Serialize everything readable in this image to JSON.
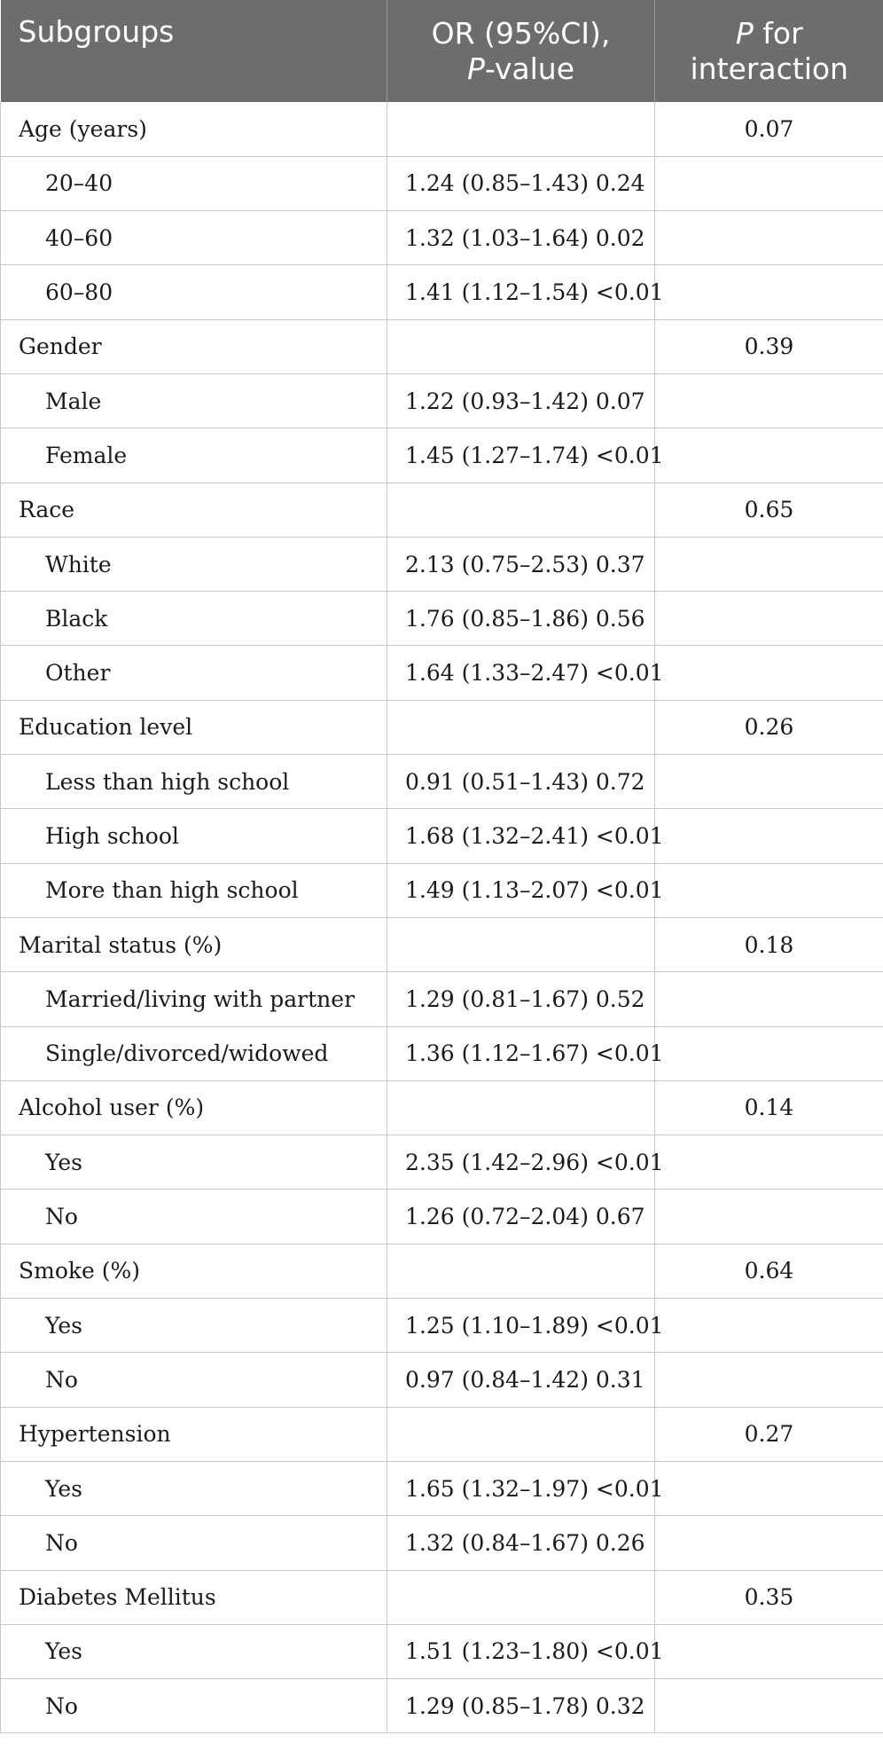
{
  "header": {
    "col1": "Subgroups",
    "col2_line1": "OR (95%CI),",
    "col2_italic": "P",
    "col2_rest": "-value",
    "col3_italic": "P",
    "col3_rest": " for",
    "col3_line2": "interaction"
  },
  "rows": [
    {
      "label": "Age (years)",
      "or": "",
      "p": "0.07",
      "sub": false
    },
    {
      "label": "20–40",
      "or": "1.24 (0.85–1.43) 0.24",
      "p": "",
      "sub": true
    },
    {
      "label": "40–60",
      "or": "1.32 (1.03–1.64) 0.02",
      "p": "",
      "sub": true
    },
    {
      "label": "60–80",
      "or": "1.41 (1.12–1.54) <0.01",
      "p": "",
      "sub": true
    },
    {
      "label": "Gender",
      "or": "",
      "p": "0.39",
      "sub": false
    },
    {
      "label": "Male",
      "or": "1.22 (0.93–1.42) 0.07",
      "p": "",
      "sub": true
    },
    {
      "label": "Female",
      "or": "1.45 (1.27–1.74) <0.01",
      "p": "",
      "sub": true
    },
    {
      "label": "Race",
      "or": "",
      "p": "0.65",
      "sub": false
    },
    {
      "label": "White",
      "or": "2.13 (0.75–2.53) 0.37",
      "p": "",
      "sub": true
    },
    {
      "label": "Black",
      "or": "1.76 (0.85–1.86) 0.56",
      "p": "",
      "sub": true
    },
    {
      "label": "Other",
      "or": "1.64 (1.33–2.47) <0.01",
      "p": "",
      "sub": true
    },
    {
      "label": "Education level",
      "or": "",
      "p": "0.26",
      "sub": false
    },
    {
      "label": "Less than high school",
      "or": "0.91 (0.51–1.43) 0.72",
      "p": "",
      "sub": true
    },
    {
      "label": "High school",
      "or": "1.68 (1.32–2.41) <0.01",
      "p": "",
      "sub": true
    },
    {
      "label": "More than high school",
      "or": "1.49 (1.13–2.07) <0.01",
      "p": "",
      "sub": true
    },
    {
      "label": "Marital status (%)",
      "or": "",
      "p": "0.18",
      "sub": false
    },
    {
      "label": "Married/living with partner",
      "or": "1.29 (0.81–1.67) 0.52",
      "p": "",
      "sub": true
    },
    {
      "label": "Single/divorced/widowed",
      "or": "1.36 (1.12–1.67) <0.01",
      "p": "",
      "sub": true
    },
    {
      "label": "Alcohol user (%)",
      "or": "",
      "p": "0.14",
      "sub": false
    },
    {
      "label": "Yes",
      "or": "2.35 (1.42–2.96) <0.01",
      "p": "",
      "sub": true
    },
    {
      "label": "No",
      "or": "1.26 (0.72–2.04) 0.67",
      "p": "",
      "sub": true
    },
    {
      "label": "Smoke (%)",
      "or": "",
      "p": "0.64",
      "sub": false
    },
    {
      "label": "Yes",
      "or": "1.25 (1.10–1.89) <0.01",
      "p": "",
      "sub": true
    },
    {
      "label": "No",
      "or": "0.97 (0.84–1.42) 0.31",
      "p": "",
      "sub": true
    },
    {
      "label": "Hypertension",
      "or": "",
      "p": "0.27",
      "sub": false
    },
    {
      "label": "Yes",
      "or": "1.65 (1.32–1.97) <0.01",
      "p": "",
      "sub": true
    },
    {
      "label": "No",
      "or": "1.32 (0.84–1.67) 0.26",
      "p": "",
      "sub": true
    },
    {
      "label": "Diabetes Mellitus",
      "or": "",
      "p": "0.35",
      "sub": false
    },
    {
      "label": "Yes",
      "or": "1.51 (1.23–1.80) <0.01",
      "p": "",
      "sub": true
    },
    {
      "label": "No",
      "or": "1.29 (0.85–1.78) 0.32",
      "p": "",
      "sub": true
    }
  ]
}
